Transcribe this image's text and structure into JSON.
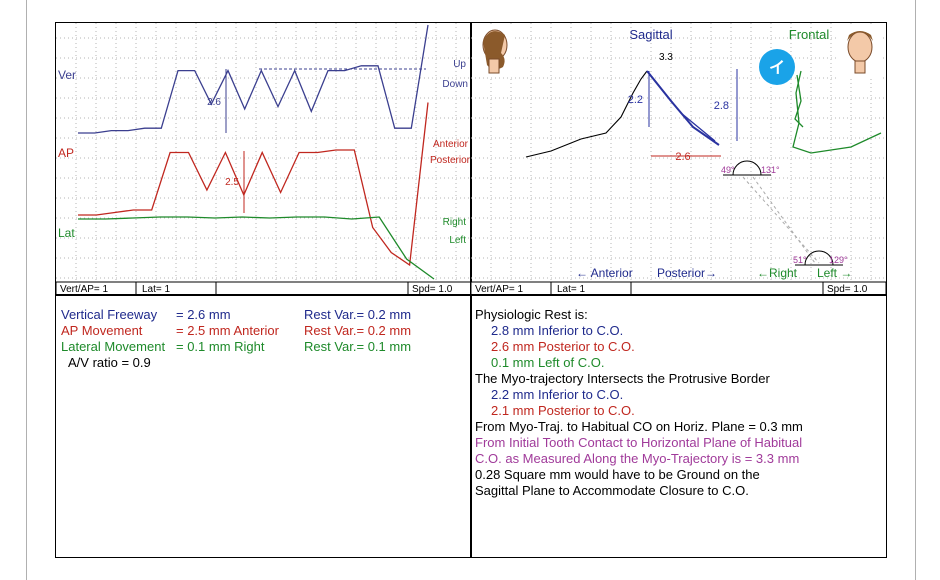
{
  "colors": {
    "vertical": "#3b3f8f",
    "ap": "#c0271f",
    "lateral": "#1e8a2a",
    "magenta": "#a03a9a",
    "grid": "#b5b5b5"
  },
  "left_panel": {
    "labels": {
      "ver": "Ver",
      "ap": "AP",
      "lat": "Lat"
    },
    "direction_labels": {
      "up": "Up",
      "down": "Down",
      "anterior": "Anterior",
      "posterior": "Posterior",
      "right": "Right",
      "left": "Left"
    },
    "measure_labels": {
      "vert": "2.6",
      "ap": "2.5"
    },
    "status": {
      "vert_ap": "Vert/AP= 1",
      "lat": "Lat= 1",
      "spd": "Spd= 1.0"
    }
  },
  "right_panel": {
    "titles": {
      "sagittal": "Sagittal",
      "frontal": "Frontal"
    },
    "labels": {
      "top": "3.3",
      "sag_v": "2.2",
      "front_v": "2.8",
      "horiz": "2.6",
      "angle_left": "49°",
      "angle_right": "131°",
      "angle2_left": "51°",
      "angle2_right": "129°"
    },
    "axis": {
      "anterior": "← Anterior",
      "posterior": "Posterior→",
      "right": "←Right",
      "left": "Left →"
    },
    "badge": "イ",
    "status": {
      "vert_ap": "Vert/AP= 1",
      "lat": "Lat= 1",
      "spd": "Spd= 1.0"
    }
  },
  "stats": {
    "rows": [
      {
        "label": "Vertical Freeway",
        "value": "= 2.6 mm",
        "rest": "Rest Var.= 0.2 mm",
        "color": "blue"
      },
      {
        "label": "AP Movement",
        "value": "= 2.5 mm Anterior",
        "rest": "Rest Var.= 0.2 mm",
        "color": "red"
      },
      {
        "label": "Lateral Movement",
        "value": "= 0.1 mm Right",
        "rest": "Rest Var.= 0.1 mm",
        "color": "green"
      }
    ],
    "av_ratio": "A/V ratio = 0.9"
  },
  "report": [
    {
      "text": "Physiologic Rest is:",
      "color": "black",
      "indent": false
    },
    {
      "text": "2.8 mm Inferior to C.O.",
      "color": "blue",
      "indent": true
    },
    {
      "text": "2.6 mm Posterior to C.O.",
      "color": "red",
      "indent": true
    },
    {
      "text": "0.1 mm Left of C.O.",
      "color": "green",
      "indent": true
    },
    {
      "text": "The Myo-trajectory Intersects the Protrusive Border",
      "color": "black",
      "indent": false
    },
    {
      "text": "2.2 mm Inferior to C.O.",
      "color": "blue",
      "indent": true
    },
    {
      "text": "2.1 mm Posterior to C.O.",
      "color": "red",
      "indent": true
    },
    {
      "text": "From Myo-Traj. to Habitual CO on Horiz. Plane =  0.3 mm",
      "color": "black",
      "indent": false
    },
    {
      "text": "From Initial Tooth Contact to Horizontal Plane of Habitual",
      "color": "magenta",
      "indent": false
    },
    {
      "text": "C.O. as Measured Along the Myo-Trajectory is = 3.3 mm",
      "color": "magenta",
      "indent": false
    },
    {
      "text": "0.28 Square mm would have to be Ground on the",
      "color": "black",
      "indent": false
    },
    {
      "text": "Sagittal Plane to Accommodate Closure to C.O.",
      "color": "black",
      "indent": false
    }
  ],
  "chart_data": [
    {
      "type": "line",
      "title": "",
      "series": [
        {
          "name": "Ver",
          "values": [
            0,
            0,
            0.1,
            0.1,
            0.2,
            0.2,
            2.6,
            2.6,
            1.2,
            2.6,
            1.0,
            2.6,
            1.1,
            2.6,
            0.9,
            2.6,
            2.6,
            2.8,
            2.8,
            0.2,
            0.2,
            6.0
          ]
        },
        {
          "name": "AP",
          "values": [
            0,
            0,
            0.1,
            0.2,
            0.2,
            2.5,
            2.5,
            1.0,
            2.5,
            0.8,
            2.5,
            0.9,
            2.5,
            2.5,
            2.6,
            2.6,
            -0.5,
            -1.5,
            -2.0,
            4.5
          ]
        },
        {
          "name": "Lat",
          "values": [
            0,
            0,
            0.05,
            0.1,
            0.1,
            0.05,
            0.1,
            0.05,
            0.1,
            0.1,
            0.0,
            0.1,
            -2.0,
            -3.0
          ]
        }
      ]
    },
    {
      "type": "line",
      "title": "Sagittal / Frontal",
      "labels": [
        "Sagittal",
        "Frontal"
      ],
      "values": {
        "vertical_rest": 2.8,
        "posterior_rest": 2.6,
        "myo_vertical": 2.2,
        "top": 3.3
      },
      "angles": [
        "49°",
        "131°",
        "51°",
        "129°"
      ]
    }
  ]
}
